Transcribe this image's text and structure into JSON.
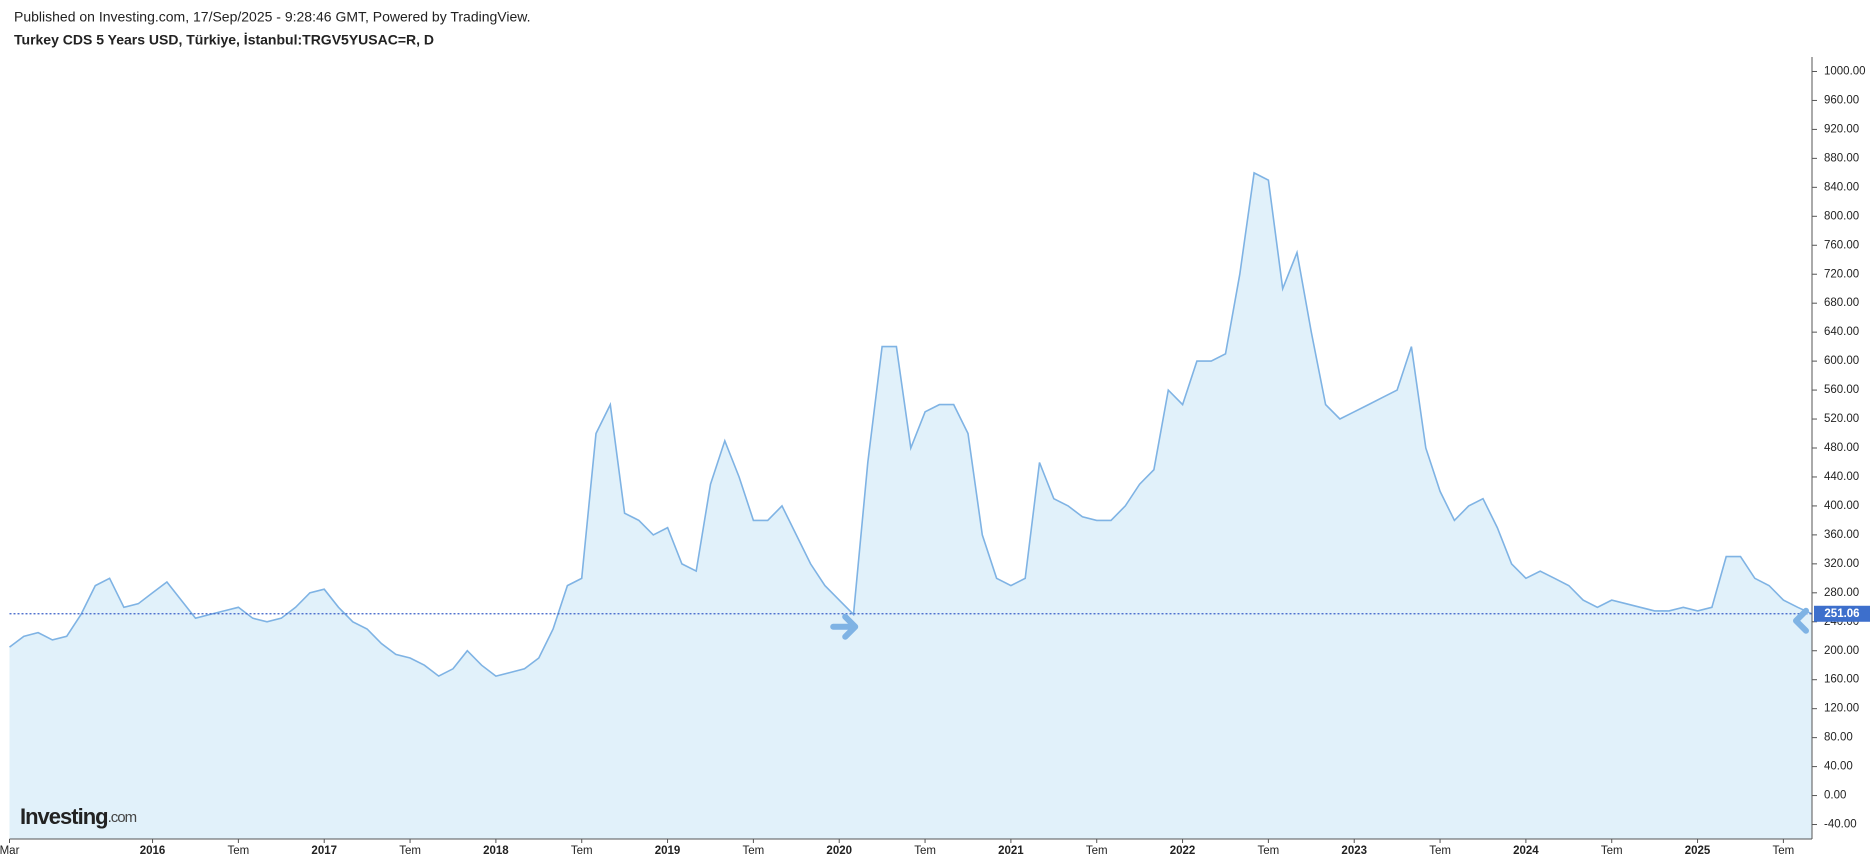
{
  "header": {
    "published": "Published on Investing.com, 17/Sep/2025 - 9:28:46 GMT, Powered by TradingView.",
    "title": "Turkey CDS 5 Years USD, Türkiye, İstanbul:TRGV5YUSAC=R, D"
  },
  "watermark": {
    "brand": "Investing",
    "suffix": ".com"
  },
  "chart_data": {
    "type": "area",
    "line_color": "#7fb3e4",
    "fill_color": "#e1f1fa",
    "x": [
      "2015-03",
      "2015-04",
      "2015-05",
      "2015-06",
      "2015-07",
      "2015-08",
      "2015-09",
      "2015-10",
      "2015-11",
      "2015-12",
      "2016-01",
      "2016-02",
      "2016-03",
      "2016-04",
      "2016-05",
      "2016-06",
      "2016-07",
      "2016-08",
      "2016-09",
      "2016-10",
      "2016-11",
      "2016-12",
      "2017-01",
      "2017-02",
      "2017-03",
      "2017-04",
      "2017-05",
      "2017-06",
      "2017-07",
      "2017-08",
      "2017-09",
      "2017-10",
      "2017-11",
      "2017-12",
      "2018-01",
      "2018-02",
      "2018-03",
      "2018-04",
      "2018-05",
      "2018-06",
      "2018-07",
      "2018-08",
      "2018-09",
      "2018-10",
      "2018-11",
      "2018-12",
      "2019-01",
      "2019-02",
      "2019-03",
      "2019-04",
      "2019-05",
      "2019-06",
      "2019-07",
      "2019-08",
      "2019-09",
      "2019-10",
      "2019-11",
      "2019-12",
      "2020-01",
      "2020-02",
      "2020-03",
      "2020-04",
      "2020-05",
      "2020-06",
      "2020-07",
      "2020-08",
      "2020-09",
      "2020-10",
      "2020-11",
      "2020-12",
      "2021-01",
      "2021-02",
      "2021-03",
      "2021-04",
      "2021-05",
      "2021-06",
      "2021-07",
      "2021-08",
      "2021-09",
      "2021-10",
      "2021-11",
      "2021-12",
      "2022-01",
      "2022-02",
      "2022-03",
      "2022-04",
      "2022-05",
      "2022-06",
      "2022-07",
      "2022-08",
      "2022-09",
      "2022-10",
      "2022-11",
      "2022-12",
      "2023-01",
      "2023-02",
      "2023-03",
      "2023-04",
      "2023-05",
      "2023-06",
      "2023-07",
      "2023-08",
      "2023-09",
      "2023-10",
      "2023-11",
      "2023-12",
      "2024-01",
      "2024-02",
      "2024-03",
      "2024-04",
      "2024-05",
      "2024-06",
      "2024-07",
      "2024-08",
      "2024-09",
      "2024-10",
      "2024-11",
      "2024-12",
      "2025-01",
      "2025-02",
      "2025-03",
      "2025-04",
      "2025-05",
      "2025-06",
      "2025-07",
      "2025-08",
      "2025-09"
    ],
    "values": [
      205,
      220,
      225,
      215,
      220,
      250,
      290,
      300,
      260,
      265,
      280,
      295,
      270,
      245,
      250,
      255,
      260,
      245,
      240,
      245,
      260,
      280,
      285,
      260,
      240,
      230,
      210,
      195,
      190,
      180,
      165,
      175,
      200,
      180,
      165,
      170,
      175,
      190,
      230,
      290,
      300,
      500,
      540,
      390,
      380,
      360,
      370,
      320,
      310,
      430,
      490,
      440,
      380,
      380,
      400,
      360,
      320,
      290,
      270,
      250,
      460,
      620,
      620,
      480,
      530,
      540,
      540,
      500,
      360,
      300,
      290,
      300,
      460,
      410,
      400,
      385,
      380,
      380,
      400,
      430,
      450,
      560,
      540,
      600,
      600,
      610,
      720,
      860,
      850,
      700,
      750,
      640,
      540,
      520,
      530,
      540,
      550,
      560,
      620,
      480,
      420,
      380,
      400,
      410,
      370,
      320,
      300,
      310,
      300,
      290,
      270,
      260,
      270,
      265,
      260,
      255,
      255,
      260,
      255,
      260,
      330,
      330,
      300,
      290,
      270,
      260,
      251.06
    ],
    "last_price": {
      "value": 251.06,
      "label": "251.06"
    },
    "xlim": [
      "2015-03",
      "2025-09"
    ],
    "xticks": [
      {
        "value": "2015-03",
        "label": "Mar"
      },
      {
        "value": "2016-01",
        "label": "2016"
      },
      {
        "value": "2016-07",
        "label": "Tem"
      },
      {
        "value": "2017-01",
        "label": "2017"
      },
      {
        "value": "2017-07",
        "label": "Tem"
      },
      {
        "value": "2018-01",
        "label": "2018"
      },
      {
        "value": "2018-07",
        "label": "Tem"
      },
      {
        "value": "2019-01",
        "label": "2019"
      },
      {
        "value": "2019-07",
        "label": "Tem"
      },
      {
        "value": "2020-01",
        "label": "2020"
      },
      {
        "value": "2020-07",
        "label": "Tem"
      },
      {
        "value": "2021-01",
        "label": "2021"
      },
      {
        "value": "2021-07",
        "label": "Tem"
      },
      {
        "value": "2022-01",
        "label": "2022"
      },
      {
        "value": "2022-07",
        "label": "Tem"
      },
      {
        "value": "2023-01",
        "label": "2023"
      },
      {
        "value": "2023-07",
        "label": "Tem"
      },
      {
        "value": "2024-01",
        "label": "2024"
      },
      {
        "value": "2024-07",
        "label": "Tem"
      },
      {
        "value": "2025-01",
        "label": "2025"
      },
      {
        "value": "2025-07",
        "label": "Tem"
      }
    ],
    "ylim": [
      -60,
      1020
    ],
    "yticks": [
      {
        "value": -40,
        "label": "-40.00"
      },
      {
        "value": 0,
        "label": "0.00"
      },
      {
        "value": 40,
        "label": "40.00"
      },
      {
        "value": 80,
        "label": "80.00"
      },
      {
        "value": 120,
        "label": "120.00"
      },
      {
        "value": 160,
        "label": "160.00"
      },
      {
        "value": 200,
        "label": "200.00"
      },
      {
        "value": 240,
        "label": "240.00"
      },
      {
        "value": 280,
        "label": "280.00"
      },
      {
        "value": 320,
        "label": "320.00"
      },
      {
        "value": 360,
        "label": "360.00"
      },
      {
        "value": 400,
        "label": "400.00"
      },
      {
        "value": 440,
        "label": "440.00"
      },
      {
        "value": 480,
        "label": "480.00"
      },
      {
        "value": 520,
        "label": "520.00"
      },
      {
        "value": 560,
        "label": "560.00"
      },
      {
        "value": 600,
        "label": "600.00"
      },
      {
        "value": 640,
        "label": "640.00"
      },
      {
        "value": 680,
        "label": "680.00"
      },
      {
        "value": 720,
        "label": "720.00"
      },
      {
        "value": 760,
        "label": "760.00"
      },
      {
        "value": 800,
        "label": "800.00"
      },
      {
        "value": 840,
        "label": "840.00"
      },
      {
        "value": 880,
        "label": "880.00"
      },
      {
        "value": 920,
        "label": "920.00"
      },
      {
        "value": 960,
        "label": "960.00"
      },
      {
        "value": 1000,
        "label": "1000.00"
      }
    ],
    "grid": false
  }
}
